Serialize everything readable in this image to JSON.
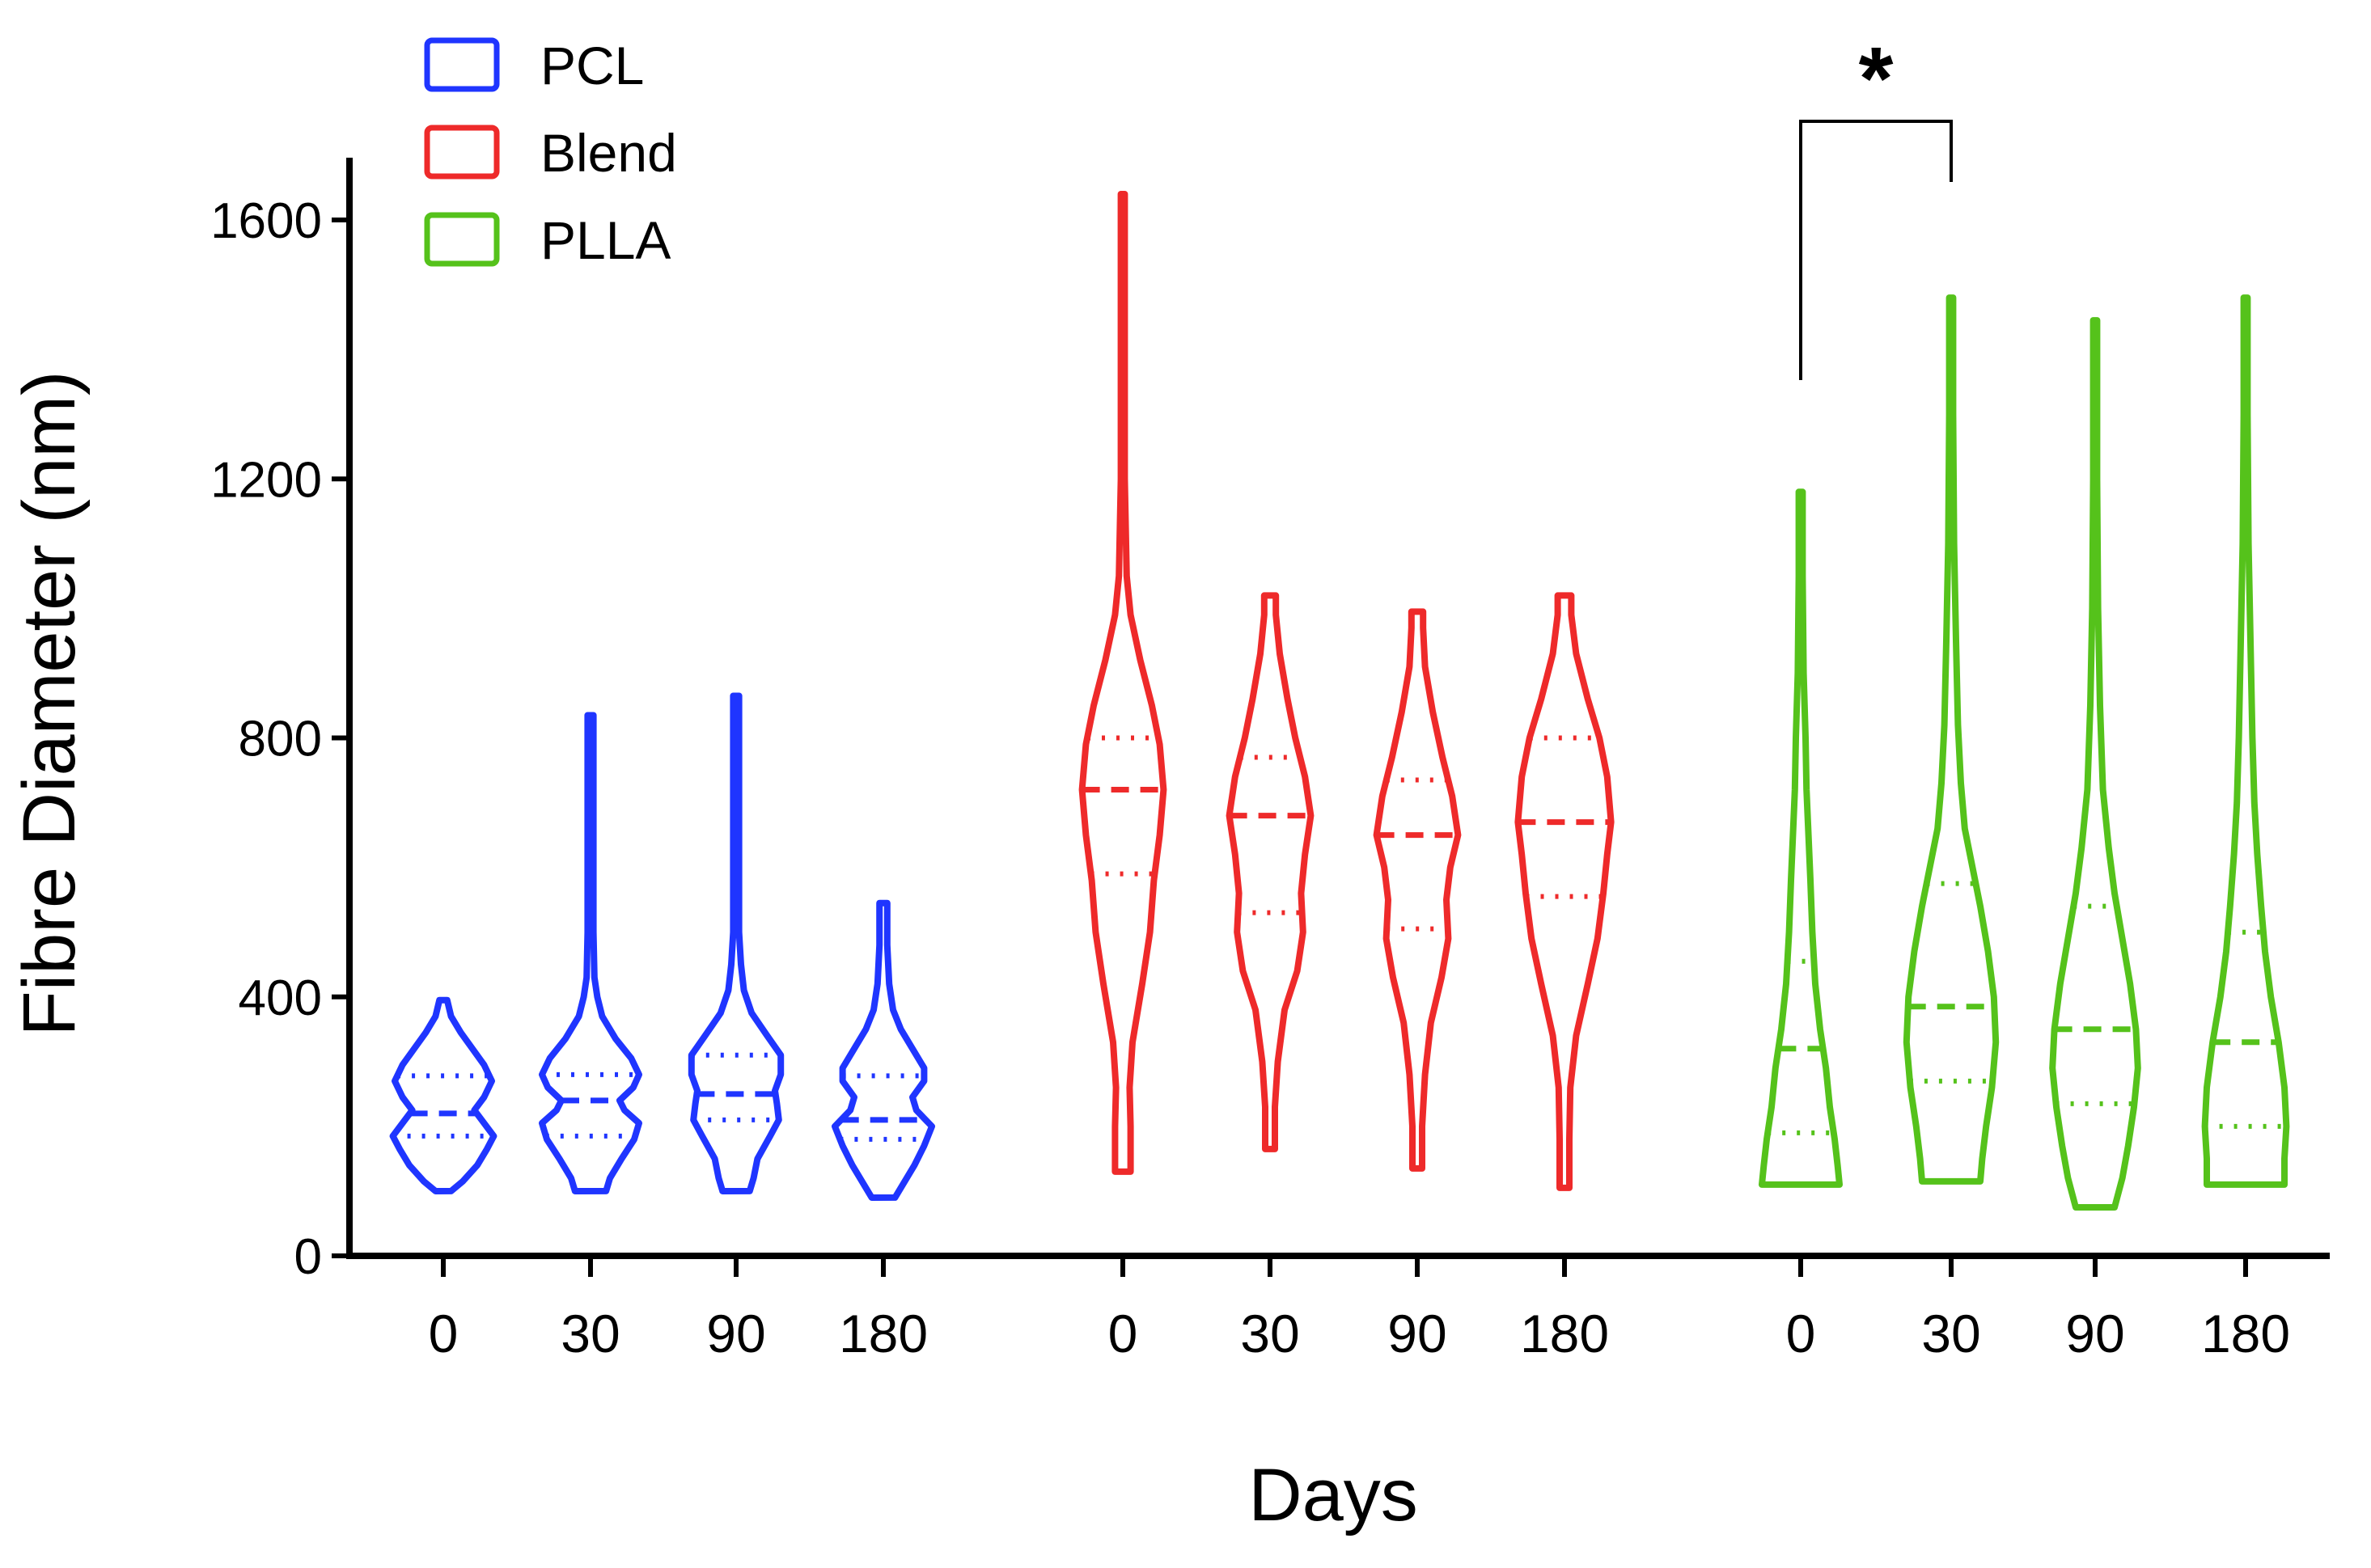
{
  "chart_data": {
    "type": "violin",
    "title": "",
    "xlabel": "Days",
    "ylabel": "Fibre Diameter (nm)",
    "ylim": [
      0,
      1700
    ],
    "yticks": [
      0,
      400,
      800,
      1200,
      1600
    ],
    "ytick_labels": [
      "0",
      "400",
      "800",
      "1200",
      "1600"
    ],
    "legend": {
      "position": "top-left",
      "entries": [
        {
          "label": "PCL",
          "color": "#1f35ff"
        },
        {
          "label": "Blend",
          "color": "#ee2a2a"
        },
        {
          "label": "PLLA",
          "color": "#55c21b"
        }
      ]
    },
    "groups": [
      {
        "name": "PCL",
        "color": "#1f35ff",
        "categories": [
          "0",
          "30",
          "90",
          "180"
        ],
        "violins": [
          {
            "day": "0",
            "min": 100,
            "max": 395,
            "q1": 185,
            "median": 220,
            "q3": 278,
            "shape": [
              [
                100,
                0.08
              ],
              [
                115,
                0.2
              ],
              [
                140,
                0.35
              ],
              [
                165,
                0.45
              ],
              [
                185,
                0.52
              ],
              [
                205,
                0.42
              ],
              [
                225,
                0.32
              ],
              [
                245,
                0.42
              ],
              [
                270,
                0.5
              ],
              [
                295,
                0.42
              ],
              [
                320,
                0.3
              ],
              [
                345,
                0.18
              ],
              [
                370,
                0.08
              ],
              [
                395,
                0.04
              ]
            ]
          },
          {
            "day": "30",
            "min": 100,
            "max": 835,
            "q1": 185,
            "median": 240,
            "q3": 280,
            "shape": [
              [
                100,
                0.16
              ],
              [
                120,
                0.2
              ],
              [
                150,
                0.32
              ],
              [
                180,
                0.45
              ],
              [
                205,
                0.5
              ],
              [
                225,
                0.35
              ],
              [
                240,
                0.3
              ],
              [
                260,
                0.44
              ],
              [
                280,
                0.5
              ],
              [
                305,
                0.42
              ],
              [
                335,
                0.26
              ],
              [
                370,
                0.12
              ],
              [
                400,
                0.07
              ],
              [
                430,
                0.04
              ],
              [
                500,
                0.03
              ],
              [
                700,
                0.03
              ],
              [
                835,
                0.03
              ]
            ]
          },
          {
            "day": "90",
            "min": 100,
            "max": 865,
            "q1": 210,
            "median": 250,
            "q3": 310,
            "shape": [
              [
                100,
                0.14
              ],
              [
                120,
                0.18
              ],
              [
                150,
                0.22
              ],
              [
                185,
                0.35
              ],
              [
                210,
                0.44
              ],
              [
                235,
                0.42
              ],
              [
                255,
                0.4
              ],
              [
                280,
                0.46
              ],
              [
                310,
                0.46
              ],
              [
                340,
                0.32
              ],
              [
                375,
                0.16
              ],
              [
                410,
                0.08
              ],
              [
                450,
                0.05
              ],
              [
                500,
                0.03
              ],
              [
                700,
                0.03
              ],
              [
                865,
                0.03
              ]
            ]
          },
          {
            "day": "180",
            "min": 90,
            "max": 545,
            "q1": 180,
            "median": 210,
            "q3": 278,
            "shape": [
              [
                90,
                0.12
              ],
              [
                110,
                0.2
              ],
              [
                140,
                0.32
              ],
              [
                170,
                0.42
              ],
              [
                200,
                0.5
              ],
              [
                225,
                0.34
              ],
              [
                245,
                0.3
              ],
              [
                270,
                0.42
              ],
              [
                290,
                0.42
              ],
              [
                320,
                0.3
              ],
              [
                350,
                0.18
              ],
              [
                380,
                0.1
              ],
              [
                420,
                0.06
              ],
              [
                480,
                0.04
              ],
              [
                545,
                0.04
              ]
            ]
          }
        ]
      },
      {
        "name": "Blend",
        "color": "#ee2a2a",
        "categories": [
          "0",
          "30",
          "90",
          "180"
        ],
        "violins": [
          {
            "day": "0",
            "min": 130,
            "max": 1640,
            "q1": 590,
            "median": 720,
            "q3": 800,
            "shape": [
              [
                130,
                0.08
              ],
              [
                200,
                0.08
              ],
              [
                260,
                0.07
              ],
              [
                330,
                0.1
              ],
              [
                420,
                0.2
              ],
              [
                500,
                0.28
              ],
              [
                580,
                0.32
              ],
              [
                650,
                0.38
              ],
              [
                720,
                0.42
              ],
              [
                790,
                0.38
              ],
              [
                850,
                0.3
              ],
              [
                920,
                0.18
              ],
              [
                990,
                0.08
              ],
              [
                1050,
                0.04
              ],
              [
                1200,
                0.02
              ],
              [
                1500,
                0.02
              ],
              [
                1640,
                0.02
              ]
            ]
          },
          {
            "day": "30",
            "min": 165,
            "max": 1020,
            "q1": 530,
            "median": 680,
            "q3": 770,
            "shape": [
              [
                165,
                0.05
              ],
              [
                230,
                0.05
              ],
              [
                300,
                0.08
              ],
              [
                380,
                0.15
              ],
              [
                440,
                0.28
              ],
              [
                500,
                0.34
              ],
              [
                560,
                0.32
              ],
              [
                620,
                0.36
              ],
              [
                680,
                0.42
              ],
              [
                740,
                0.36
              ],
              [
                800,
                0.26
              ],
              [
                860,
                0.18
              ],
              [
                930,
                0.1
              ],
              [
                990,
                0.06
              ],
              [
                1020,
                0.06
              ]
            ]
          },
          {
            "day": "90",
            "min": 135,
            "max": 995,
            "q1": 505,
            "median": 650,
            "q3": 735,
            "shape": [
              [
                135,
                0.05
              ],
              [
                200,
                0.05
              ],
              [
                280,
                0.08
              ],
              [
                360,
                0.14
              ],
              [
                430,
                0.25
              ],
              [
                490,
                0.32
              ],
              [
                550,
                0.3
              ],
              [
                600,
                0.34
              ],
              [
                650,
                0.42
              ],
              [
                710,
                0.36
              ],
              [
                770,
                0.26
              ],
              [
                840,
                0.16
              ],
              [
                910,
                0.08
              ],
              [
                970,
                0.06
              ],
              [
                995,
                0.06
              ]
            ]
          },
          {
            "day": "180",
            "min": 105,
            "max": 1020,
            "q1": 555,
            "median": 670,
            "q3": 800,
            "shape": [
              [
                105,
                0.05
              ],
              [
                180,
                0.05
              ],
              [
                260,
                0.06
              ],
              [
                340,
                0.12
              ],
              [
                420,
                0.24
              ],
              [
                490,
                0.34
              ],
              [
                560,
                0.4
              ],
              [
                620,
                0.44
              ],
              [
                670,
                0.48
              ],
              [
                740,
                0.44
              ],
              [
                800,
                0.36
              ],
              [
                860,
                0.24
              ],
              [
                930,
                0.12
              ],
              [
                990,
                0.07
              ],
              [
                1020,
                0.07
              ]
            ]
          }
        ]
      },
      {
        "name": "PLLA",
        "color": "#55c21b",
        "categories": [
          "0",
          "30",
          "90",
          "180"
        ],
        "violins": [
          {
            "day": "0",
            "min": 110,
            "max": 1180,
            "q1": 190,
            "median": 320,
            "q3": 455,
            "shape": [
              [
                110,
                0.4
              ],
              [
                140,
                0.38
              ],
              [
                180,
                0.35
              ],
              [
                230,
                0.3
              ],
              [
                290,
                0.26
              ],
              [
                350,
                0.2
              ],
              [
                420,
                0.15
              ],
              [
                500,
                0.12
              ],
              [
                580,
                0.1
              ],
              [
                650,
                0.08
              ],
              [
                720,
                0.06
              ],
              [
                800,
                0.05
              ],
              [
                900,
                0.03
              ],
              [
                1050,
                0.02
              ],
              [
                1180,
                0.02
              ]
            ]
          },
          {
            "day": "30",
            "min": 115,
            "max": 1480,
            "q1": 270,
            "median": 385,
            "q3": 575,
            "shape": [
              [
                115,
                0.3
              ],
              [
                150,
                0.32
              ],
              [
                200,
                0.36
              ],
              [
                260,
                0.42
              ],
              [
                330,
                0.46
              ],
              [
                400,
                0.44
              ],
              [
                470,
                0.38
              ],
              [
                540,
                0.3
              ],
              [
                600,
                0.22
              ],
              [
                660,
                0.14
              ],
              [
                730,
                0.1
              ],
              [
                820,
                0.07
              ],
              [
                950,
                0.05
              ],
              [
                1100,
                0.03
              ],
              [
                1300,
                0.02
              ],
              [
                1480,
                0.02
              ]
            ]
          },
          {
            "day": "90",
            "min": 75,
            "max": 1445,
            "q1": 235,
            "median": 350,
            "q3": 540,
            "shape": [
              [
                75,
                0.2
              ],
              [
                120,
                0.28
              ],
              [
                170,
                0.34
              ],
              [
                230,
                0.4
              ],
              [
                290,
                0.44
              ],
              [
                350,
                0.42
              ],
              [
                420,
                0.36
              ],
              [
                490,
                0.28
              ],
              [
                560,
                0.2
              ],
              [
                630,
                0.14
              ],
              [
                720,
                0.08
              ],
              [
                850,
                0.05
              ],
              [
                1000,
                0.03
              ],
              [
                1200,
                0.02
              ],
              [
                1445,
                0.02
              ]
            ]
          },
          {
            "day": "180",
            "min": 110,
            "max": 1480,
            "q1": 200,
            "median": 330,
            "q3": 500,
            "shape": [
              [
                110,
                0.4
              ],
              [
                150,
                0.4
              ],
              [
                200,
                0.42
              ],
              [
                260,
                0.4
              ],
              [
                330,
                0.34
              ],
              [
                400,
                0.26
              ],
              [
                470,
                0.2
              ],
              [
                540,
                0.16
              ],
              [
                620,
                0.12
              ],
              [
                700,
                0.09
              ],
              [
                800,
                0.07
              ],
              [
                950,
                0.05
              ],
              [
                1100,
                0.03
              ],
              [
                1300,
                0.02
              ],
              [
                1480,
                0.02
              ]
            ]
          }
        ]
      }
    ],
    "annotations": [
      {
        "type": "significance",
        "group": "PLLA",
        "from": "0",
        "to": "30",
        "label": "*"
      }
    ]
  }
}
